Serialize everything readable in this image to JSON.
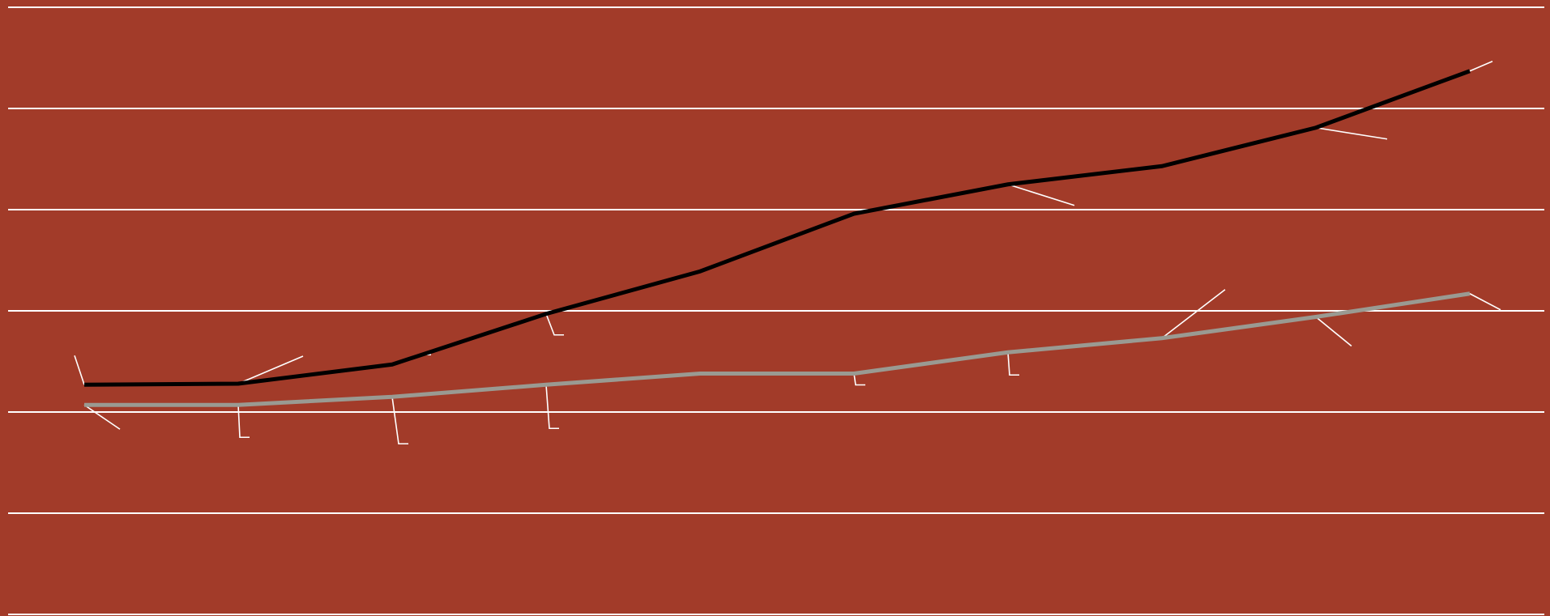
{
  "colors": {
    "background": "#a23b29",
    "gridline": "#ffffff",
    "leader": "#ffffff",
    "series_dark": "#000000",
    "series_light": "#9a9a92"
  },
  "chart_data": {
    "type": "line",
    "title": "",
    "xlabel": "",
    "ylabel": "",
    "grid": true,
    "legend": "none",
    "ylim": [
      0,
      6
    ],
    "x": [
      1,
      2,
      3,
      4,
      5,
      6,
      7,
      8,
      9,
      10
    ],
    "series": [
      {
        "color": "#000000",
        "values": [
          2.27,
          2.28,
          2.47,
          2.97,
          3.39,
          3.96,
          4.25,
          4.43,
          4.81,
          5.37
        ]
      },
      {
        "color": "#9a9a92",
        "values": [
          2.07,
          2.07,
          2.15,
          2.27,
          2.38,
          2.38,
          2.59,
          2.73,
          2.94,
          3.17
        ]
      }
    ]
  }
}
